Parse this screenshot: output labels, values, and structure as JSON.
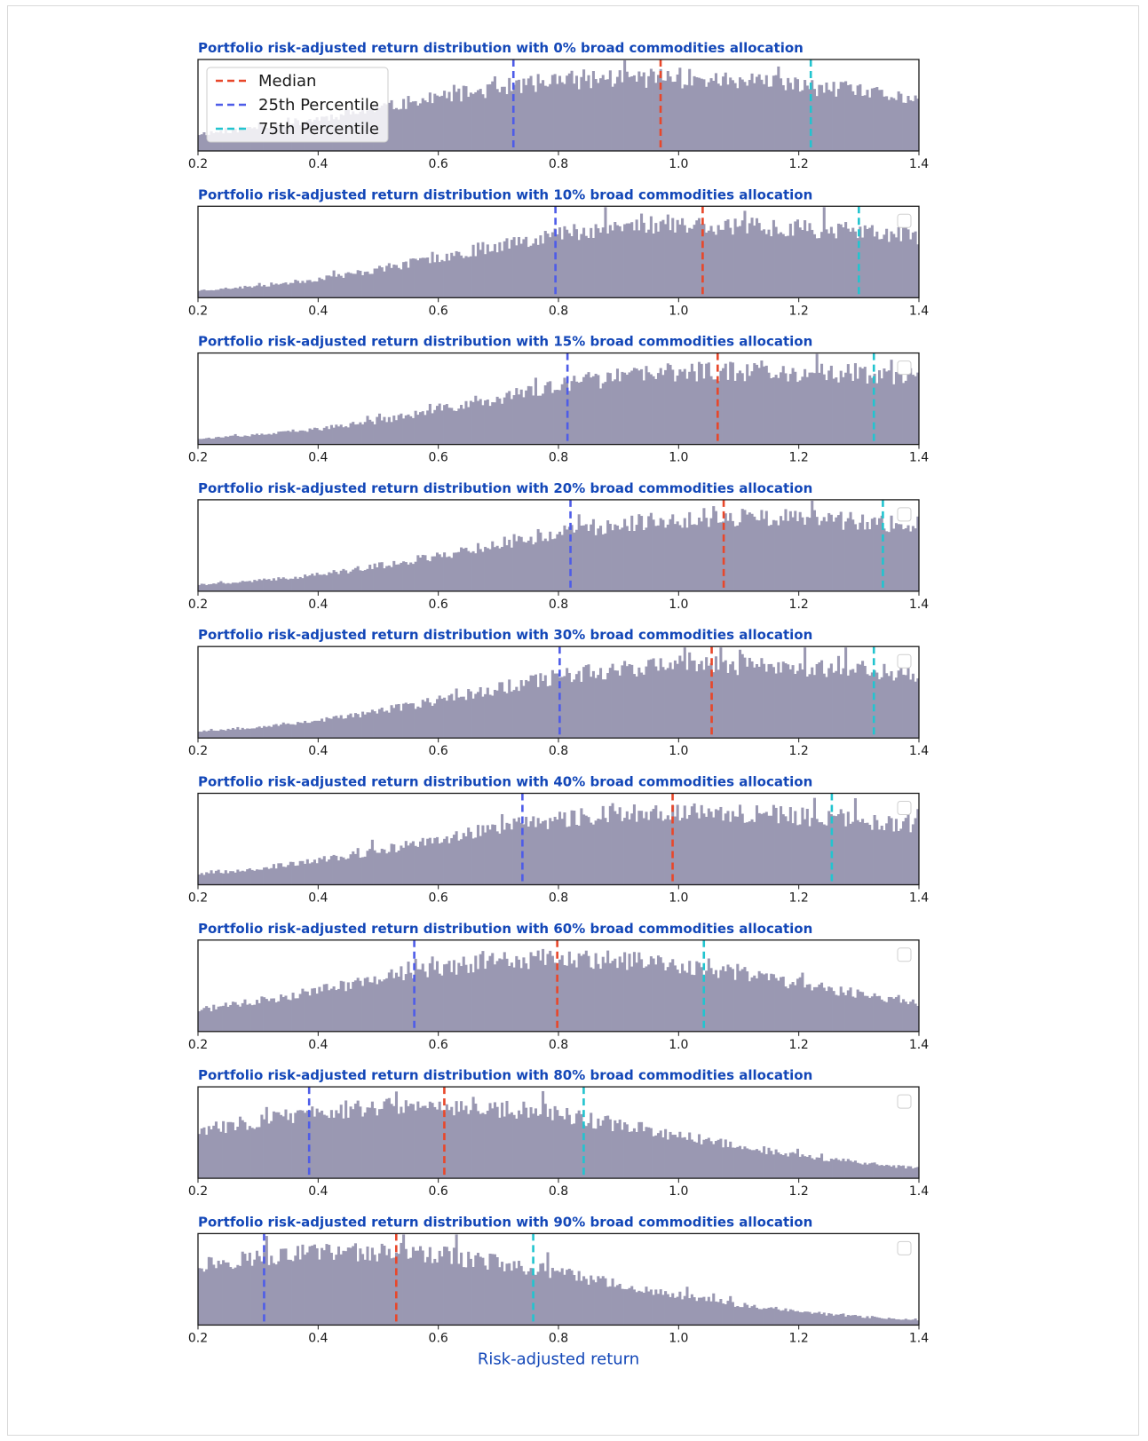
{
  "figure": {
    "xlabel": "Risk-adjusted return"
  },
  "legend": {
    "position": "upper-left of first panel",
    "entries": [
      {
        "label": "Median",
        "color": "#e8472a",
        "style": "dashed"
      },
      {
        "label": "25th Percentile",
        "color": "#4e5ce8",
        "style": "dashed"
      },
      {
        "label": "75th Percentile",
        "color": "#22c4cf",
        "style": "dashed"
      }
    ]
  },
  "colors": {
    "bars": "#9a98b2",
    "title": "#1347b8",
    "median": "#e8472a",
    "p25": "#4e5ce8",
    "p75": "#22c4cf"
  },
  "chart_data": [
    {
      "type": "bar",
      "title": "Portfolio risk-adjusted return distribution with 0% broad commodities allocation",
      "xlim": [
        0.2,
        1.4
      ],
      "xticks": [
        "0.2",
        "0.4",
        "0.6",
        "0.8",
        "1.0",
        "1.2",
        "1.4"
      ],
      "median": 0.97,
      "p25": 0.725,
      "p75": 1.22,
      "shape": {
        "peak": 0.92,
        "left_sd": 0.38,
        "right_sd": 0.55,
        "min_frac": 0.08
      },
      "seed": 11
    },
    {
      "type": "bar",
      "title": "Portfolio risk-adjusted return distribution with 10% broad commodities allocation",
      "xlim": [
        0.2,
        1.4
      ],
      "xticks": [
        "0.2",
        "0.4",
        "0.6",
        "0.8",
        "1.0",
        "1.2",
        "1.4"
      ],
      "median": 1.04,
      "p25": 0.795,
      "p75": 1.3,
      "shape": {
        "peak": 0.98,
        "left_sd": 0.34,
        "right_sd": 0.7,
        "min_frac": 0.03
      },
      "seed": 23
    },
    {
      "type": "bar",
      "title": "Portfolio risk-adjusted return distribution with 15% broad commodities allocation",
      "xlim": [
        0.2,
        1.4
      ],
      "xticks": [
        "0.2",
        "0.4",
        "0.6",
        "0.8",
        "1.0",
        "1.2",
        "1.4"
      ],
      "median": 1.065,
      "p25": 0.815,
      "p75": 1.325,
      "shape": {
        "peak": 1.05,
        "left_sd": 0.36,
        "right_sd": 0.8,
        "min_frac": 0.02
      },
      "seed": 37
    },
    {
      "type": "bar",
      "title": "Portfolio risk-adjusted return distribution with 20% broad commodities allocation",
      "xlim": [
        0.2,
        1.4
      ],
      "xticks": [
        "0.2",
        "0.4",
        "0.6",
        "0.8",
        "1.0",
        "1.2",
        "1.4"
      ],
      "median": 1.075,
      "p25": 0.82,
      "p75": 1.34,
      "shape": {
        "peak": 1.05,
        "left_sd": 0.37,
        "right_sd": 0.8,
        "min_frac": 0.02
      },
      "seed": 41
    },
    {
      "type": "bar",
      "title": "Portfolio risk-adjusted return distribution with 30% broad commodities allocation",
      "xlim": [
        0.2,
        1.4
      ],
      "xticks": [
        "0.2",
        "0.4",
        "0.6",
        "0.8",
        "1.0",
        "1.2",
        "1.4"
      ],
      "median": 1.055,
      "p25": 0.802,
      "p75": 1.325,
      "shape": {
        "peak": 1.02,
        "left_sd": 0.36,
        "right_sd": 0.75,
        "min_frac": 0.02
      },
      "seed": 53
    },
    {
      "type": "bar",
      "title": "Portfolio risk-adjusted return distribution with 40% broad commodities allocation",
      "xlim": [
        0.2,
        1.4
      ],
      "xticks": [
        "0.2",
        "0.4",
        "0.6",
        "0.8",
        "1.0",
        "1.2",
        "1.4"
      ],
      "median": 0.99,
      "p25": 0.74,
      "p75": 1.255,
      "shape": {
        "peak": 0.98,
        "left_sd": 0.38,
        "right_sd": 0.6,
        "min_frac": 0.03
      },
      "seed": 67
    },
    {
      "type": "bar",
      "title": "Portfolio risk-adjusted return distribution with 60% broad commodities allocation",
      "xlim": [
        0.2,
        1.4
      ],
      "xticks": [
        "0.2",
        "0.4",
        "0.6",
        "0.8",
        "1.0",
        "1.2",
        "1.4"
      ],
      "median": 0.798,
      "p25": 0.56,
      "p75": 1.042,
      "shape": {
        "peak": 0.8,
        "left_sd": 0.36,
        "right_sd": 0.42,
        "min_frac": 0.06
      },
      "seed": 71
    },
    {
      "type": "bar",
      "title": "Portfolio risk-adjusted return distribution with 80% broad commodities allocation",
      "xlim": [
        0.2,
        1.4
      ],
      "xticks": [
        "0.2",
        "0.4",
        "0.6",
        "0.8",
        "1.0",
        "1.2",
        "1.4"
      ],
      "median": 0.61,
      "p25": 0.385,
      "p75": 0.842,
      "shape": {
        "peak": 0.58,
        "left_sd": 0.4,
        "right_sd": 0.4,
        "min_frac": 0.02
      },
      "seed": 83
    },
    {
      "type": "bar",
      "title": "Portfolio risk-adjusted return distribution with 90% broad commodities allocation",
      "xlim": [
        0.2,
        1.4
      ],
      "xticks": [
        "0.2",
        "0.4",
        "0.6",
        "0.8",
        "1.0",
        "1.2",
        "1.4"
      ],
      "median": 0.53,
      "p25": 0.31,
      "p75": 0.758,
      "shape": {
        "peak": 0.48,
        "left_sd": 0.45,
        "right_sd": 0.38,
        "min_frac": 0.02
      },
      "seed": 97
    }
  ]
}
